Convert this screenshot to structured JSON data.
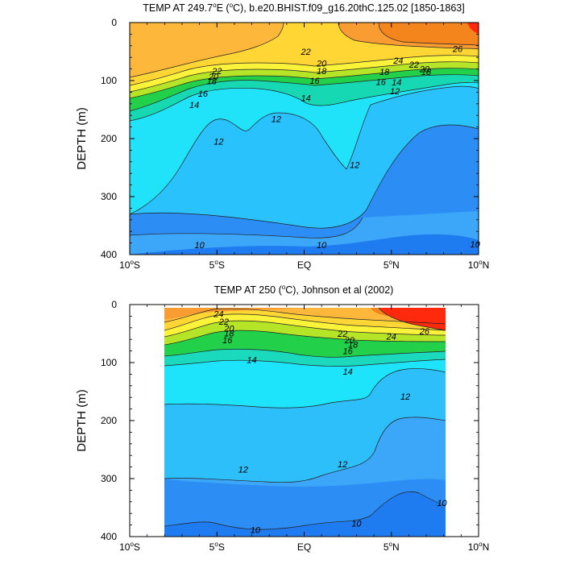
{
  "chart_data": [
    {
      "type": "contour",
      "title": "TEMP AT 249.7°E (°C), b.e20.BHIST.f09_g16.20thC.125.02 [1850-1863]",
      "title_parts": [
        "TEMP AT 249.7",
        "o",
        "E (",
        "o",
        "C), b.e20.BHIST.f09_g16.20thC.125.02 [1850-1863]"
      ],
      "xlabel": "",
      "ylabel": "DEPTH (m)",
      "xlim": [
        -10,
        10
      ],
      "ylim": [
        400,
        0
      ],
      "data_xlim": [
        -10,
        10
      ],
      "data_ylim": [
        0,
        400
      ],
      "x_ticks": [
        {
          "value": -10,
          "num": "10",
          "deg": "o",
          "hemi": "S"
        },
        {
          "value": -5,
          "num": "5",
          "deg": "o",
          "hemi": "S"
        },
        {
          "value": 0,
          "num": "EQ",
          "deg": "",
          "hemi": ""
        },
        {
          "value": 5,
          "num": "5",
          "deg": "o",
          "hemi": "N"
        },
        {
          "value": 10,
          "num": "10",
          "deg": "o",
          "hemi": "N"
        }
      ],
      "y_ticks": [
        0,
        100,
        200,
        300,
        400
      ],
      "contour_levels": [
        9,
        10,
        11,
        12,
        13,
        14,
        15,
        16,
        17,
        18,
        19,
        20,
        21,
        22,
        23,
        24,
        25,
        26,
        27
      ],
      "contour_labels": [
        {
          "x": 4.6,
          "y": 85,
          "level": "18"
        },
        {
          "x": 4.4,
          "y": 102,
          "level": "16"
        },
        {
          "x": 5.3,
          "y": 103,
          "level": "14"
        },
        {
          "x": 5.2,
          "y": 118,
          "level": "12"
        },
        {
          "x": 5.4,
          "y": 65,
          "level": "24"
        },
        {
          "x": 6.3,
          "y": 72,
          "level": "22"
        },
        {
          "x": 6.9,
          "y": 80,
          "level": "20"
        },
        {
          "x": 7.0,
          "y": 85,
          "level": "18"
        },
        {
          "x": 8.8,
          "y": 45,
          "level": "26"
        },
        {
          "x": -5.0,
          "y": 83,
          "level": "22"
        },
        {
          "x": -5.2,
          "y": 93,
          "level": "20"
        },
        {
          "x": -5.3,
          "y": 101,
          "level": "18"
        },
        {
          "x": -5.8,
          "y": 122,
          "level": "16"
        },
        {
          "x": -6.3,
          "y": 142,
          "level": "14"
        },
        {
          "x": -4.9,
          "y": 205,
          "level": "12"
        },
        {
          "x": 2.9,
          "y": 245,
          "level": "12"
        },
        {
          "x": -1.6,
          "y": 166,
          "level": "12"
        },
        {
          "x": 0.1,
          "y": 50,
          "level": "22"
        },
        {
          "x": 1.0,
          "y": 70,
          "level": "20"
        },
        {
          "x": 1.0,
          "y": 83,
          "level": "18"
        },
        {
          "x": 0.6,
          "y": 100,
          "level": "16"
        },
        {
          "x": 0.1,
          "y": 130,
          "level": "14"
        },
        {
          "x": -6.0,
          "y": 383,
          "level": "10"
        },
        {
          "x": 1.0,
          "y": 383,
          "level": "10"
        },
        {
          "x": 9.8,
          "y": 382,
          "level": "10"
        }
      ]
    },
    {
      "type": "contour",
      "title": "TEMP AT 250 (°C), Johnson et al (2002)",
      "title_parts": [
        "TEMP AT 250 (",
        "o",
        "C), Johnson et al (2002)"
      ],
      "xlabel": "",
      "ylabel": "DEPTH (m)",
      "xlim": [
        -10,
        10
      ],
      "ylim": [
        400,
        0
      ],
      "data_xlim": [
        -8,
        8.1
      ],
      "data_ylim": [
        5,
        400
      ],
      "x_ticks": [
        {
          "value": -10,
          "num": "10",
          "deg": "o",
          "hemi": "S"
        },
        {
          "value": -5,
          "num": "5",
          "deg": "o",
          "hemi": "S"
        },
        {
          "value": 0,
          "num": "EQ",
          "deg": "",
          "hemi": ""
        },
        {
          "value": 5,
          "num": "5",
          "deg": "o",
          "hemi": "N"
        },
        {
          "value": 10,
          "num": "10",
          "deg": "o",
          "hemi": "N"
        }
      ],
      "y_ticks": [
        0,
        100,
        200,
        300,
        400
      ],
      "contour_levels": [
        9,
        10,
        11,
        12,
        13,
        14,
        15,
        16,
        17,
        18,
        19,
        20,
        21,
        22,
        23,
        24,
        25,
        26,
        27
      ],
      "contour_labels": [
        {
          "x": -4.9,
          "y": 16,
          "level": "24"
        },
        {
          "x": -4.6,
          "y": 29,
          "level": "22"
        },
        {
          "x": -4.3,
          "y": 41,
          "level": "20"
        },
        {
          "x": -4.3,
          "y": 49,
          "level": "18"
        },
        {
          "x": -4.4,
          "y": 61,
          "level": "16"
        },
        {
          "x": -3.0,
          "y": 95,
          "level": "14"
        },
        {
          "x": 2.2,
          "y": 50,
          "level": "22"
        },
        {
          "x": 2.6,
          "y": 61,
          "level": "20"
        },
        {
          "x": 2.8,
          "y": 69,
          "level": "18"
        },
        {
          "x": 2.5,
          "y": 80,
          "level": "16"
        },
        {
          "x": 5.0,
          "y": 55,
          "level": "24"
        },
        {
          "x": 6.9,
          "y": 46,
          "level": "26"
        },
        {
          "x": 2.5,
          "y": 115,
          "level": "14"
        },
        {
          "x": 5.8,
          "y": 158,
          "level": "12"
        },
        {
          "x": -3.5,
          "y": 284,
          "level": "12"
        },
        {
          "x": 2.2,
          "y": 275,
          "level": "12"
        },
        {
          "x": 7.9,
          "y": 342,
          "level": "10"
        },
        {
          "x": 3.0,
          "y": 377,
          "level": "10"
        },
        {
          "x": -2.8,
          "y": 388,
          "level": "10"
        }
      ]
    }
  ]
}
